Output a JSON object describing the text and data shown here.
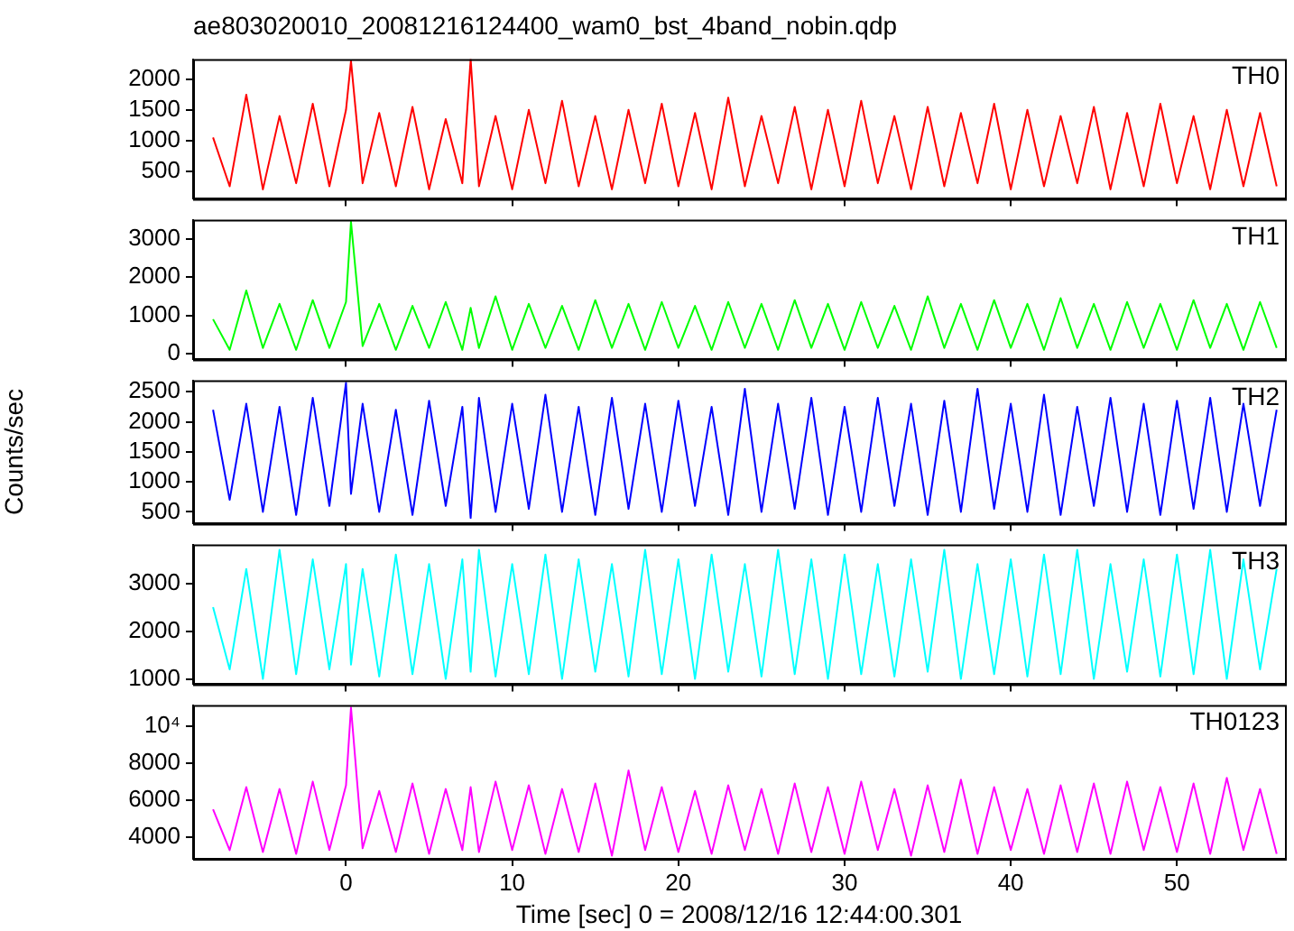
{
  "chart_data": [
    {
      "type": "line",
      "title": "ae803020010_20081216124400_wam0_bst_4band_nobin.qdp",
      "tick_labels": "y",
      "grid": false,
      "marker": "none",
      "xlim": [
        -9.2,
        56.5
      ],
      "xticks": [
        0,
        10,
        20,
        30,
        40,
        50
      ],
      "ylim": [
        45,
        2330
      ],
      "yticks": [
        500,
        1000,
        1500,
        2000
      ],
      "x": [
        -8,
        -7,
        -6,
        -5,
        -4,
        -3,
        -2,
        -1,
        0,
        0.3,
        1,
        2,
        3,
        4,
        5,
        6,
        7,
        7.5,
        8,
        9,
        10,
        11,
        12,
        13,
        14,
        15,
        16,
        17,
        18,
        19,
        20,
        21,
        22,
        23,
        24,
        25,
        26,
        27,
        28,
        29,
        30,
        31,
        32,
        33,
        34,
        35,
        36,
        37,
        38,
        39,
        40,
        41,
        42,
        43,
        44,
        45,
        46,
        47,
        48,
        49,
        50,
        51,
        52,
        53,
        54,
        55,
        56
      ],
      "series": [
        {
          "name": "TH0",
          "color": "#ff0000",
          "values": [
            1050,
            250,
            1750,
            200,
            1400,
            300,
            1600,
            250,
            1500,
            2300,
            300,
            1450,
            250,
            1550,
            200,
            1350,
            300,
            2330,
            250,
            1400,
            200,
            1500,
            300,
            1650,
            250,
            1400,
            200,
            1500,
            300,
            1600,
            250,
            1450,
            200,
            1700,
            250,
            1400,
            300,
            1550,
            200,
            1500,
            250,
            1650,
            300,
            1400,
            200,
            1550,
            250,
            1450,
            300,
            1600,
            200,
            1500,
            250,
            1400,
            300,
            1550,
            200,
            1450,
            250,
            1600,
            300,
            1400,
            200,
            1500,
            250,
            1450,
            250
          ]
        }
      ]
    },
    {
      "type": "line",
      "tick_labels": "y",
      "grid": false,
      "marker": "none",
      "xlim": [
        -9.2,
        56.5
      ],
      "xticks": [
        0,
        10,
        20,
        30,
        40,
        50
      ],
      "ylim": [
        -150,
        3500
      ],
      "yticks": [
        0,
        1000,
        2000,
        3000
      ],
      "x": [
        -8,
        -7,
        -6,
        -5,
        -4,
        -3,
        -2,
        -1,
        0,
        0.3,
        1,
        2,
        3,
        4,
        5,
        6,
        7,
        7.5,
        8,
        9,
        10,
        11,
        12,
        13,
        14,
        15,
        16,
        17,
        18,
        19,
        20,
        21,
        22,
        23,
        24,
        25,
        26,
        27,
        28,
        29,
        30,
        31,
        32,
        33,
        34,
        35,
        36,
        37,
        38,
        39,
        40,
        41,
        42,
        43,
        44,
        45,
        46,
        47,
        48,
        49,
        50,
        51,
        52,
        53,
        54,
        55,
        56
      ],
      "series": [
        {
          "name": "TH1",
          "color": "#00ff00",
          "values": [
            900,
            100,
            1650,
            150,
            1300,
            100,
            1400,
            150,
            1350,
            3450,
            200,
            1300,
            100,
            1250,
            150,
            1350,
            100,
            1200,
            150,
            1500,
            100,
            1300,
            150,
            1250,
            100,
            1400,
            150,
            1300,
            100,
            1350,
            150,
            1250,
            100,
            1350,
            150,
            1300,
            100,
            1400,
            150,
            1300,
            100,
            1350,
            150,
            1250,
            100,
            1500,
            150,
            1300,
            100,
            1400,
            150,
            1300,
            100,
            1450,
            150,
            1300,
            100,
            1350,
            150,
            1300,
            100,
            1400,
            150,
            1300,
            100,
            1350,
            150
          ]
        }
      ]
    },
    {
      "type": "line",
      "tick_labels": "y",
      "ylabel": "Counts/sec",
      "grid": false,
      "marker": "none",
      "xlim": [
        -9.2,
        56.5
      ],
      "xticks": [
        0,
        10,
        20,
        30,
        40,
        50
      ],
      "ylim": [
        305,
        2690
      ],
      "yticks": [
        500,
        1000,
        1500,
        2000,
        2500
      ],
      "x": [
        -8,
        -7,
        -6,
        -5,
        -4,
        -3,
        -2,
        -1,
        0,
        0.3,
        1,
        2,
        3,
        4,
        5,
        6,
        7,
        7.5,
        8,
        9,
        10,
        11,
        12,
        13,
        14,
        15,
        16,
        17,
        18,
        19,
        20,
        21,
        22,
        23,
        24,
        25,
        26,
        27,
        28,
        29,
        30,
        31,
        32,
        33,
        34,
        35,
        36,
        37,
        38,
        39,
        40,
        41,
        42,
        43,
        44,
        45,
        46,
        47,
        48,
        49,
        50,
        51,
        52,
        53,
        54,
        55,
        56
      ],
      "series": [
        {
          "name": "TH2",
          "color": "#0000ff",
          "values": [
            2200,
            700,
            2300,
            500,
            2250,
            450,
            2400,
            600,
            2650,
            800,
            2300,
            500,
            2200,
            450,
            2350,
            600,
            2250,
            400,
            2400,
            500,
            2300,
            550,
            2450,
            500,
            2250,
            450,
            2400,
            550,
            2300,
            500,
            2350,
            600,
            2250,
            450,
            2550,
            500,
            2300,
            550,
            2400,
            450,
            2250,
            500,
            2400,
            600,
            2300,
            450,
            2350,
            500,
            2550,
            550,
            2300,
            500,
            2450,
            450,
            2250,
            600,
            2400,
            500,
            2300,
            450,
            2350,
            550,
            2400,
            500,
            2300,
            600,
            2200
          ]
        }
      ]
    },
    {
      "type": "line",
      "tick_labels": "y",
      "grid": false,
      "marker": "none",
      "xlim": [
        -9.2,
        56.5
      ],
      "xticks": [
        0,
        10,
        20,
        30,
        40,
        50
      ],
      "ylim": [
        890,
        3810
      ],
      "yticks": [
        1000,
        2000,
        3000
      ],
      "x": [
        -8,
        -7,
        -6,
        -5,
        -4,
        -3,
        -2,
        -1,
        0,
        0.3,
        1,
        2,
        3,
        4,
        5,
        6,
        7,
        7.5,
        8,
        9,
        10,
        11,
        12,
        13,
        14,
        15,
        16,
        17,
        18,
        19,
        20,
        21,
        22,
        23,
        24,
        25,
        26,
        27,
        28,
        29,
        30,
        31,
        32,
        33,
        34,
        35,
        36,
        37,
        38,
        39,
        40,
        41,
        42,
        43,
        44,
        45,
        46,
        47,
        48,
        49,
        50,
        51,
        52,
        53,
        54,
        55,
        56
      ],
      "series": [
        {
          "name": "TH3",
          "color": "#00ffff",
          "values": [
            2500,
            1200,
            3300,
            1000,
            3700,
            1100,
            3500,
            1200,
            3400,
            1300,
            3300,
            1050,
            3600,
            1100,
            3400,
            1000,
            3500,
            1150,
            3700,
            1050,
            3400,
            1100,
            3600,
            1000,
            3500,
            1150,
            3400,
            1050,
            3700,
            1100,
            3500,
            1000,
            3600,
            1150,
            3400,
            1050,
            3700,
            1100,
            3500,
            1000,
            3600,
            1100,
            3400,
            1050,
            3500,
            1150,
            3700,
            1000,
            3400,
            1100,
            3500,
            1050,
            3600,
            1100,
            3700,
            1000,
            3400,
            1150,
            3500,
            1050,
            3600,
            1100,
            3700,
            1000,
            3500,
            1200,
            3300
          ]
        }
      ]
    },
    {
      "type": "line",
      "xlabel": "Time [sec] 0 = 2008/12/16 12:44:00.301",
      "grid": false,
      "marker": "none",
      "xlim": [
        -9.2,
        56.5
      ],
      "xticks": [
        0,
        10,
        20,
        30,
        40,
        50
      ],
      "ylim": [
        2830,
        11130
      ],
      "yticks": [
        4000,
        6000,
        8000,
        {
          "value": 10000,
          "label": "10⁴"
        }
      ],
      "x": [
        -8,
        -7,
        -6,
        -5,
        -4,
        -3,
        -2,
        -1,
        0,
        0.3,
        1,
        2,
        3,
        4,
        5,
        6,
        7,
        7.5,
        8,
        9,
        10,
        11,
        12,
        13,
        14,
        15,
        16,
        17,
        18,
        19,
        20,
        21,
        22,
        23,
        24,
        25,
        26,
        27,
        28,
        29,
        30,
        31,
        32,
        33,
        34,
        35,
        36,
        37,
        38,
        39,
        40,
        41,
        42,
        43,
        44,
        45,
        46,
        47,
        48,
        49,
        50,
        51,
        52,
        53,
        54,
        55,
        56
      ],
      "series": [
        {
          "name": "TH0123",
          "color": "#ff00ff",
          "values": [
            5500,
            3300,
            6700,
            3200,
            6600,
            3100,
            7000,
            3300,
            6800,
            11000,
            3400,
            6500,
            3200,
            6900,
            3100,
            6600,
            3300,
            6700,
            3200,
            7000,
            3300,
            6800,
            3100,
            6600,
            3200,
            6900,
            3000,
            7600,
            3300,
            6700,
            3200,
            6500,
            3100,
            6800,
            3300,
            6600,
            3100,
            6900,
            3200,
            6700,
            3100,
            7000,
            3300,
            6600,
            3000,
            6800,
            3200,
            7100,
            3100,
            6700,
            3300,
            6600,
            3100,
            6800,
            3200,
            6900,
            3100,
            7000,
            3300,
            6700,
            3200,
            6900,
            3100,
            7200,
            3300,
            6600,
            3100
          ]
        }
      ]
    }
  ]
}
